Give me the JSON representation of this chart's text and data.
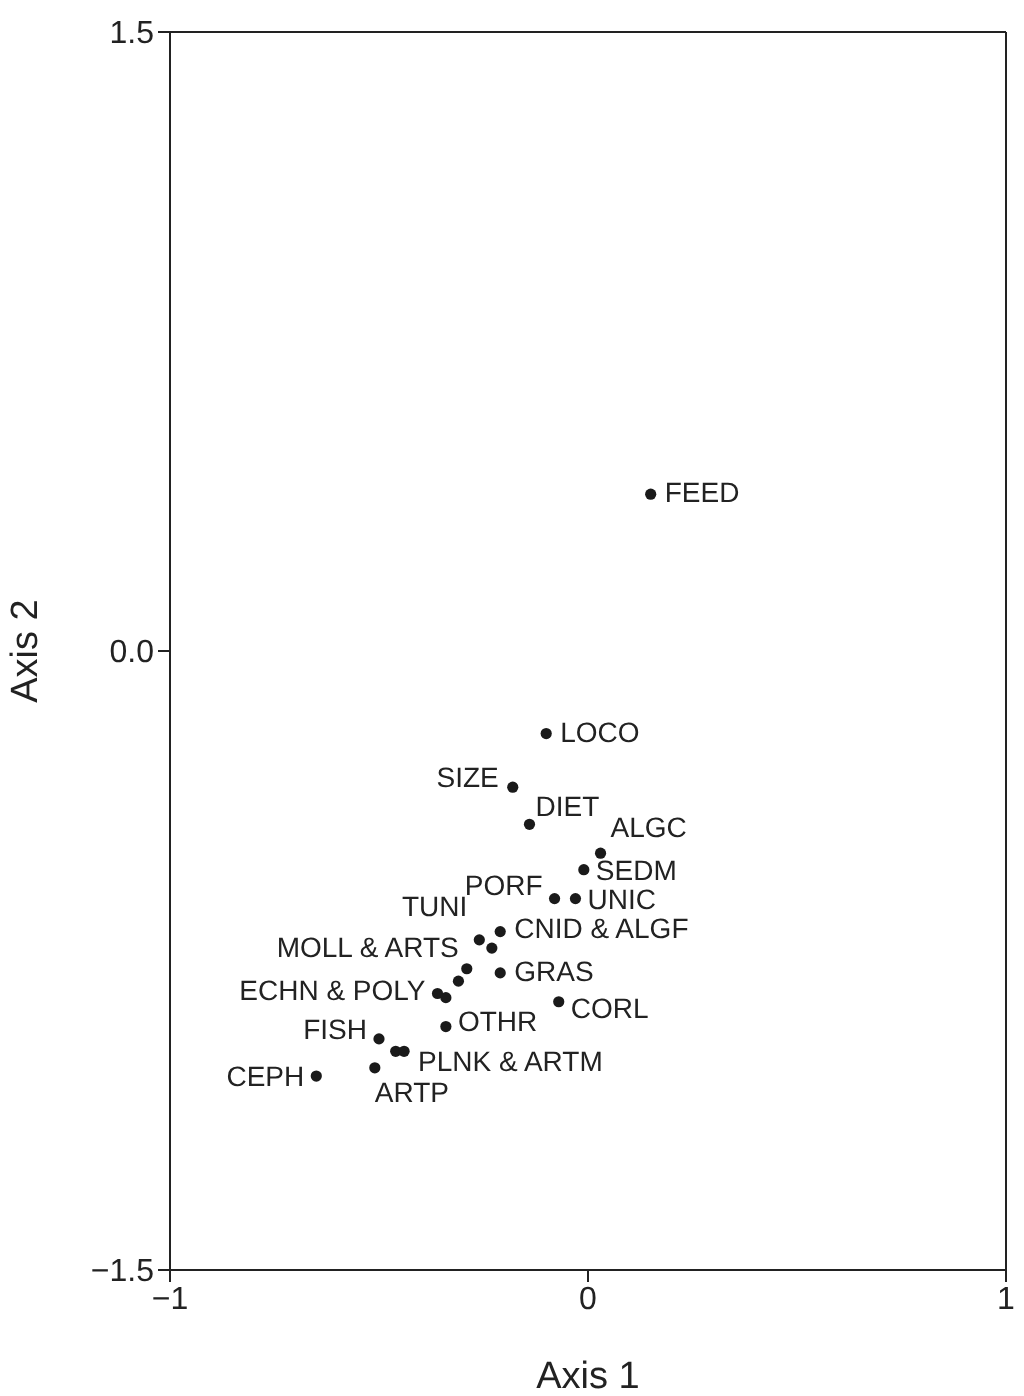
{
  "chart_data": {
    "type": "scatter",
    "xlabel": "Axis 1",
    "ylabel": "Axis 2",
    "xlim": [
      -1,
      1
    ],
    "ylim": [
      -1.5,
      1.5
    ],
    "xticks": [
      {
        "value": -1,
        "label": "−1"
      },
      0,
      1
    ],
    "yticks": [
      {
        "value": -1.5,
        "label": "−1.5"
      },
      {
        "value": 0,
        "label": "0.0"
      },
      1.5
    ],
    "marker": "circle",
    "series": [
      {
        "color": "#1a1a1a",
        "x": [
          0.15,
          -0.1,
          -0.18,
          -0.14,
          0.03,
          -0.01,
          -0.08,
          -0.03,
          -0.26,
          -0.21,
          -0.23,
          -0.21,
          -0.29,
          -0.31,
          -0.36,
          -0.34,
          -0.07,
          -0.34,
          -0.5,
          -0.46,
          -0.44,
          -0.51,
          -0.65
        ],
        "values": [
          0.38,
          -0.2,
          -0.33,
          -0.42,
          -0.49,
          -0.53,
          -0.6,
          -0.6,
          -0.7,
          -0.68,
          -0.72,
          -0.78,
          -0.77,
          -0.8,
          -0.83,
          -0.84,
          -0.85,
          -0.91,
          -0.94,
          -0.97,
          -0.97,
          -1.01,
          -1.03
        ]
      }
    ],
    "annotations": [
      {
        "text": "FEED",
        "x": 0.15,
        "y": 0.38
      },
      {
        "text": "LOCO",
        "x": -0.1,
        "y": -0.2
      },
      {
        "text": "SIZE",
        "x": -0.18,
        "y": -0.33
      },
      {
        "text": "DIET",
        "x": -0.14,
        "y": -0.42
      },
      {
        "text": "ALGC",
        "x": 0.03,
        "y": -0.49
      },
      {
        "text": "SEDM",
        "x": -0.01,
        "y": -0.53
      },
      {
        "text": "PORF",
        "x": -0.08,
        "y": -0.6
      },
      {
        "text": "UNIC",
        "x": -0.03,
        "y": -0.6
      },
      {
        "text": "TUNI",
        "x": -0.26,
        "y": -0.7
      },
      {
        "text": "CNID & ALGF",
        "x": -0.21,
        "y": -0.68
      },
      {
        "text": "GRAS",
        "x": -0.21,
        "y": -0.78
      },
      {
        "text": "MOLL & ARTS",
        "x": -0.29,
        "y": -0.77
      },
      {
        "text": "ECHN & POLY",
        "x": -0.36,
        "y": -0.83
      },
      {
        "text": "CORL",
        "x": -0.07,
        "y": -0.85
      },
      {
        "text": "OTHR",
        "x": -0.34,
        "y": -0.91
      },
      {
        "text": "FISH",
        "x": -0.5,
        "y": -0.94
      },
      {
        "text": "PLNK & ARTM",
        "x": -0.44,
        "y": -0.97
      },
      {
        "text": "ARTP",
        "x": -0.51,
        "y": -1.01
      },
      {
        "text": "CEPH",
        "x": -0.65,
        "y": -1.03
      }
    ]
  }
}
